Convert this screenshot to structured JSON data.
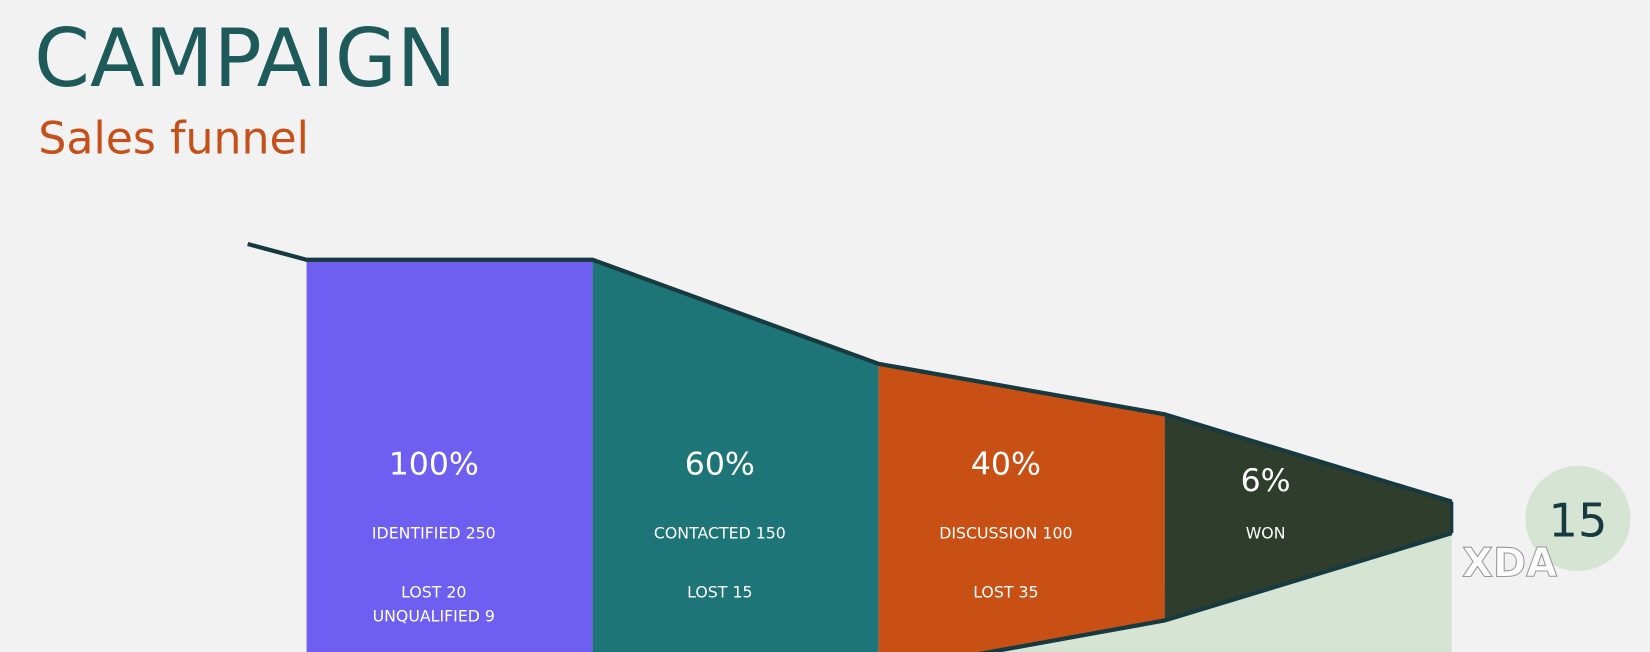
{
  "slide": {
    "title": "CAMPAIGN",
    "subtitle": "Sales funnel",
    "stages": [
      {
        "percent": "100%",
        "label": "IDENTIFIED 250",
        "lost": [
          "LOST 20",
          "UNQUALIFIED 9"
        ]
      },
      {
        "percent": "60%",
        "label": "CONTACTED 150",
        "lost": [
          "LOST 15"
        ]
      },
      {
        "percent": "40%",
        "label": "DISCUSSION 100",
        "lost": [
          "LOST 35"
        ]
      },
      {
        "percent": "6%",
        "label": "WON",
        "lost": []
      }
    ],
    "page_number": "15",
    "watermark": "XDA"
  }
}
